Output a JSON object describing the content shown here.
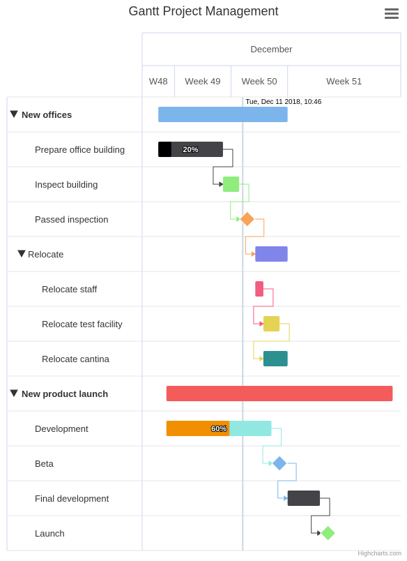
{
  "chart_data": {
    "type": "gantt",
    "title": "Gantt Project Management",
    "credits": "Highcharts.com",
    "x_axis_bottom": {
      "start": "2018-11-29",
      "end": "2018-12-31",
      "ticks": [
        {
          "label": "W48",
          "from": "2018-11-29",
          "to": "2018-12-03"
        },
        {
          "label": "Week 49",
          "from": "2018-12-03",
          "to": "2018-12-10"
        },
        {
          "label": "Week 50",
          "from": "2018-12-10",
          "to": "2018-12-17"
        },
        {
          "label": "Week 51",
          "from": "2018-12-17",
          "to": "2018-12-31"
        }
      ]
    },
    "x_axis_top": {
      "ticks": [
        {
          "label": "December"
        }
      ]
    },
    "current_date": {
      "date": "2018-12-11T10:46",
      "label": "Tue, Dec 11 2018, 10:46"
    },
    "tasks": [
      {
        "id": "new_offices",
        "name": "New offices",
        "level": 0,
        "bold": true,
        "collapsible": true,
        "start": "2018-12-01",
        "end": "2018-12-17",
        "color": "#7cb5ec"
      },
      {
        "id": "prepare_building",
        "name": "Prepare office building",
        "level": 1,
        "start": "2018-12-01",
        "end": "2018-12-09",
        "completed": 0.2,
        "completed_label": "20%",
        "color": "#434348",
        "completed_color": "#000000"
      },
      {
        "id": "inspect_building",
        "name": "Inspect building",
        "level": 1,
        "dependency": "prepare_building",
        "start": "2018-12-09",
        "end": "2018-12-11",
        "color": "#90ed7d"
      },
      {
        "id": "passed_inspection",
        "name": "Passed inspection",
        "level": 1,
        "dependency": "inspect_building",
        "milestone": true,
        "start": "2018-12-12",
        "color": "#f7a35c"
      },
      {
        "id": "relocate",
        "name": "Relocate",
        "level": 1,
        "collapsible": true,
        "dependency": "passed_inspection",
        "start": "2018-12-13",
        "end": "2018-12-17",
        "color": "#8085e9"
      },
      {
        "id": "relocate_staff",
        "name": "Relocate staff",
        "level": 2,
        "start": "2018-12-13",
        "end": "2018-12-14",
        "color": "#f15c80"
      },
      {
        "id": "relocate_test",
        "name": "Relocate test facility",
        "level": 2,
        "dependency": "relocate_staff",
        "start": "2018-12-14",
        "end": "2018-12-16",
        "color": "#e4d354"
      },
      {
        "id": "relocate_cantina",
        "name": "Relocate cantina",
        "level": 2,
        "dependency": "relocate_test",
        "start": "2018-12-14",
        "end": "2018-12-17",
        "color": "#2b908f"
      },
      {
        "id": "new_product",
        "name": "New product launch",
        "level": 0,
        "bold": true,
        "collapsible": true,
        "start": "2018-12-02",
        "end": "2018-12-30",
        "color": "#f45b5b"
      },
      {
        "id": "development",
        "name": "Development",
        "level": 1,
        "start": "2018-12-02",
        "end": "2018-12-15",
        "completed": 0.6,
        "completed_label": "60%",
        "color": "#91e8e1",
        "completed_color": "#f28f00"
      },
      {
        "id": "beta",
        "name": "Beta",
        "level": 1,
        "dependency": "development",
        "milestone": true,
        "start": "2018-12-16",
        "color": "#7cb5ec"
      },
      {
        "id": "final_development",
        "name": "Final development",
        "level": 1,
        "dependency": "beta",
        "start": "2018-12-17",
        "end": "2018-12-21",
        "color": "#434348"
      },
      {
        "id": "launch",
        "name": "Launch",
        "level": 1,
        "dependency": "final_development",
        "milestone": true,
        "start": "2018-12-22",
        "color": "#90ed7d"
      }
    ]
  }
}
